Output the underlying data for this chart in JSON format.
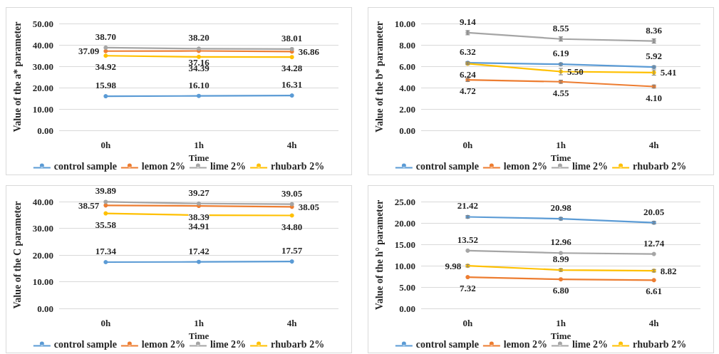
{
  "chart_data": [
    {
      "type": "line",
      "xlabel": "Time",
      "ylabel": "Value of the a* parameter",
      "categories": [
        "0h",
        "1h",
        "4h"
      ],
      "ylim": [
        0,
        50
      ],
      "yticks": [
        {
          "value": 0,
          "label": "0.00"
        },
        {
          "value": 10,
          "label": "10.00"
        },
        {
          "value": 20,
          "label": "20.00"
        },
        {
          "value": 30,
          "label": "30.00"
        },
        {
          "value": 40,
          "label": "40.00"
        },
        {
          "value": 50,
          "label": "50.00"
        }
      ],
      "grid": "y",
      "legend": "bottom",
      "marker": "circle",
      "line_style": "solid",
      "series": [
        {
          "name": "control sample",
          "color": "#5b9bd5",
          "values": [
            15.98,
            16.1,
            16.31
          ],
          "value_labels": [
            "15.98",
            "16.10",
            "16.31"
          ]
        },
        {
          "name": "lemon 2%",
          "color": "#ed7d31",
          "values": [
            37.09,
            37.16,
            36.86
          ],
          "value_labels": [
            "37.09",
            "37.16",
            "36.86"
          ]
        },
        {
          "name": "lime 2%",
          "color": "#a5a5a5",
          "values": [
            38.7,
            38.2,
            38.01
          ],
          "value_labels": [
            "38.70",
            "38.20",
            "38.01"
          ]
        },
        {
          "name": "rhubarb 2%",
          "color": "#ffc000",
          "values": [
            34.92,
            34.39,
            34.28
          ],
          "value_labels": [
            "34.92",
            "34.39",
            "34.28"
          ]
        }
      ]
    },
    {
      "type": "line",
      "xlabel": "Time",
      "ylabel": "Value of the b* parameter",
      "categories": [
        "0h",
        "1h",
        "4h"
      ],
      "ylim": [
        0,
        10
      ],
      "yticks": [
        {
          "value": 0,
          "label": "0.00"
        },
        {
          "value": 2,
          "label": "2.00"
        },
        {
          "value": 4,
          "label": "4.00"
        },
        {
          "value": 6,
          "label": "6.00"
        },
        {
          "value": 8,
          "label": "8.00"
        },
        {
          "value": 10,
          "label": "10.00"
        }
      ],
      "grid": "y",
      "legend": "bottom",
      "marker": "circle",
      "line_style": "solid",
      "series": [
        {
          "name": "control sample",
          "color": "#5b9bd5",
          "values": [
            6.32,
            6.19,
            5.92
          ],
          "value_labels": [
            "6.32",
            "6.19",
            "5.92"
          ],
          "errors": [
            0.1,
            0.1,
            0.1
          ]
        },
        {
          "name": "lemon 2%",
          "color": "#ed7d31",
          "values": [
            4.72,
            4.55,
            4.1
          ],
          "value_labels": [
            "4.72",
            "4.55",
            "4.10"
          ],
          "errors": [
            0.15,
            0.15,
            0.15
          ]
        },
        {
          "name": "lime 2%",
          "color": "#a5a5a5",
          "values": [
            9.14,
            8.55,
            8.36
          ],
          "value_labels": [
            "9.14",
            "8.55",
            "8.36"
          ],
          "errors": [
            0.2,
            0.2,
            0.2
          ]
        },
        {
          "name": "rhubarb 2%",
          "color": "#ffc000",
          "values": [
            6.24,
            5.5,
            5.41
          ],
          "value_labels": [
            "6.24",
            "5.50",
            "5.41"
          ],
          "errors": [
            0.1,
            0.3,
            0.25
          ]
        }
      ]
    },
    {
      "type": "line",
      "xlabel": "Time",
      "ylabel": "Value of the C parameter",
      "categories": [
        "0h",
        "1h",
        "4h"
      ],
      "ylim": [
        0,
        40
      ],
      "yticks": [
        {
          "value": 0,
          "label": "0.00"
        },
        {
          "value": 10,
          "label": "10.00"
        },
        {
          "value": 20,
          "label": "20.00"
        },
        {
          "value": 30,
          "label": "30.00"
        },
        {
          "value": 40,
          "label": "40.00"
        }
      ],
      "grid": "y",
      "legend": "bottom",
      "marker": "circle",
      "line_style": "solid",
      "series": [
        {
          "name": "control sample",
          "color": "#5b9bd5",
          "values": [
            17.34,
            17.42,
            17.57
          ],
          "value_labels": [
            "17.34",
            "17.42",
            "17.57"
          ]
        },
        {
          "name": "lemon 2%",
          "color": "#ed7d31",
          "values": [
            38.57,
            38.39,
            38.05
          ],
          "value_labels": [
            "38.57",
            "38.39",
            "38.05"
          ]
        },
        {
          "name": "lime 2%",
          "color": "#a5a5a5",
          "values": [
            39.89,
            39.27,
            39.05
          ],
          "value_labels": [
            "39.89",
            "39.27",
            "39.05"
          ]
        },
        {
          "name": "rhubarb 2%",
          "color": "#ffc000",
          "values": [
            35.58,
            34.91,
            34.8
          ],
          "value_labels": [
            "35.58",
            "34.91",
            "34.80"
          ]
        }
      ]
    },
    {
      "type": "line",
      "xlabel": "Time",
      "ylabel": "Value of the h° parameter",
      "categories": [
        "0h",
        "1h",
        "4h"
      ],
      "ylim": [
        0,
        25
      ],
      "yticks": [
        {
          "value": 0,
          "label": "0.00"
        },
        {
          "value": 5,
          "label": "5.00"
        },
        {
          "value": 10,
          "label": "10.00"
        },
        {
          "value": 15,
          "label": "15.00"
        },
        {
          "value": 20,
          "label": "20.00"
        },
        {
          "value": 25,
          "label": "25.00"
        }
      ],
      "grid": "y",
      "legend": "bottom",
      "marker": "circle",
      "line_style": "solid",
      "series": [
        {
          "name": "control sample",
          "color": "#5b9bd5",
          "values": [
            21.42,
            20.98,
            20.05
          ],
          "value_labels": [
            "21.42",
            "20.98",
            "20.05"
          ],
          "errors": [
            0.3,
            0.3,
            0.3
          ]
        },
        {
          "name": "lemon 2%",
          "color": "#ed7d31",
          "values": [
            7.32,
            6.8,
            6.61
          ],
          "value_labels": [
            "7.32",
            "6.80",
            "6.61"
          ]
        },
        {
          "name": "lime 2%",
          "color": "#a5a5a5",
          "values": [
            13.52,
            12.96,
            12.74
          ],
          "value_labels": [
            "13.52",
            "12.96",
            "12.74"
          ]
        },
        {
          "name": "rhubarb 2%",
          "color": "#ffc000",
          "values": [
            9.98,
            8.99,
            8.82
          ],
          "value_labels": [
            "9.98",
            "8.99",
            "8.82"
          ],
          "errors": [
            0.3,
            0.3,
            0.3
          ]
        }
      ]
    }
  ]
}
